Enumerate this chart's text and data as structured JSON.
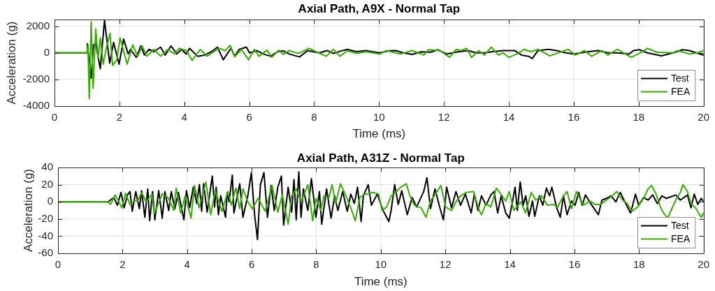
{
  "chart_data": [
    {
      "type": "line",
      "title": "Axial Path, A9X - Normal Tap",
      "xlabel": "Time (ms)",
      "ylabel": "Acceleration (g)",
      "xlim": [
        0,
        20
      ],
      "xticks": [
        0,
        2,
        4,
        6,
        8,
        10,
        12,
        14,
        16,
        18,
        20
      ],
      "ylim": [
        -4000,
        2500
      ],
      "yticks": [
        -4000,
        -2000,
        0,
        2000
      ],
      "grid": true,
      "legend": "bottom right",
      "series": [
        {
          "name": "Test",
          "color": "#000000",
          "x": [
            0,
            1.0,
            1.01,
            1.13,
            1.2,
            1.27,
            1.41,
            1.54,
            1.7,
            1.82,
            1.99,
            2.13,
            2.27,
            2.34,
            2.52,
            2.66,
            2.77,
            2.91,
            3.06,
            3.27,
            3.41,
            3.59,
            3.77,
            3.91,
            4.06,
            4.16,
            4.41,
            4.63,
            4.84,
            5.02,
            5.2,
            5.44,
            5.55,
            5.69,
            5.91,
            6.01,
            6.23,
            6.45,
            6.66,
            6.87,
            7.05,
            7.23,
            7.55,
            7.8,
            8.16,
            8.4,
            8.6,
            8.8,
            9.02,
            9.3,
            9.59,
            10.02,
            10.3,
            10.52,
            10.75,
            11.02,
            11.3,
            11.59,
            11.81,
            12.09,
            12.4,
            12.74,
            13.0,
            13.25,
            13.5,
            13.82,
            14.18,
            14.39,
            14.61,
            14.72,
            14.9,
            15.22,
            15.47,
            15.76,
            16.01,
            16.4,
            16.76,
            17.05,
            17.34,
            17.7,
            17.84,
            18.02,
            18.27,
            18.7,
            19.06,
            19.35,
            19.56,
            20.0
          ],
          "values": [
            0,
            0,
            690,
            -1900,
            600,
            700,
            -1200,
            2450,
            -780,
            780,
            -860,
            1030,
            -90,
            260,
            -340,
            520,
            -170,
            260,
            90,
            430,
            -170,
            520,
            -90,
            260,
            -90,
            340,
            -260,
            -170,
            90,
            430,
            -520,
            350,
            -260,
            260,
            430,
            0,
            170,
            -100,
            -260,
            90,
            150,
            -90,
            -310,
            170,
            0,
            170,
            -50,
            120,
            260,
            90,
            170,
            0,
            150,
            170,
            0,
            -120,
            80,
            50,
            230,
            -90,
            60,
            170,
            0,
            0,
            90,
            170,
            170,
            -170,
            -260,
            -430,
            170,
            260,
            170,
            0,
            -90,
            80,
            170,
            0,
            0,
            -90,
            170,
            230,
            0,
            -230,
            0,
            230,
            170,
            -170
          ]
        },
        {
          "name": "FEA",
          "color": "#36ad00",
          "x": [
            0,
            1.0,
            1.03,
            1.07,
            1.13,
            1.19,
            1.27,
            1.34,
            1.41,
            1.5,
            1.6,
            1.71,
            1.79,
            1.92,
            2.02,
            2.24,
            2.41,
            2.56,
            2.7,
            2.84,
            3.06,
            3.27,
            3.49,
            3.7,
            3.84,
            4.06,
            4.24,
            4.49,
            4.7,
            4.91,
            5.1,
            5.25,
            5.41,
            5.55,
            5.76,
            5.98,
            6.16,
            6.3,
            6.55,
            6.69,
            6.91,
            7.05,
            7.23,
            7.52,
            7.84,
            8.09,
            8.37,
            8.59,
            8.8,
            9.02,
            9.3,
            9.59,
            10.02,
            10.23,
            10.66,
            11.02,
            11.38,
            11.52,
            11.88,
            12.17,
            12.38,
            12.52,
            12.7,
            12.85,
            13.07,
            13.25,
            13.46,
            13.68,
            13.82,
            14.0,
            14.25,
            14.47,
            14.68,
            14.9,
            15.26,
            15.83,
            16.05,
            16.33,
            16.55,
            16.87,
            17.05,
            17.34,
            17.77,
            18.06,
            18.27,
            18.56,
            19.06,
            19.2,
            19.56,
            19.81,
            20.0
          ],
          "values": [
            0,
            0,
            600,
            -3450,
            2330,
            -2670,
            1810,
            -430,
            1120,
            -860,
            400,
            1470,
            -950,
            -520,
            1120,
            -860,
            600,
            -260,
            520,
            -260,
            260,
            -260,
            260,
            -90,
            340,
            170,
            -570,
            260,
            -260,
            90,
            340,
            150,
            560,
            -300,
            260,
            -520,
            260,
            -260,
            200,
            -340,
            200,
            -120,
            170,
            -50,
            340,
            50,
            -260,
            260,
            -260,
            170,
            -50,
            90,
            -90,
            170,
            -90,
            170,
            -170,
            230,
            170,
            -340,
            260,
            170,
            340,
            -340,
            170,
            -170,
            430,
            -170,
            0,
            -340,
            -90,
            260,
            90,
            260,
            -230,
            260,
            -170,
            170,
            -260,
            170,
            -170,
            260,
            -340,
            0,
            340,
            50,
            0,
            170,
            -90,
            0,
            170
          ]
        }
      ]
    },
    {
      "type": "line",
      "title": "Axial Path, A31Z - Normal Tap",
      "xlabel": "Time (ms)",
      "ylabel": "Acceleration (g)",
      "xlim": [
        0,
        20
      ],
      "xticks": [
        0,
        2,
        4,
        6,
        8,
        10,
        12,
        14,
        16,
        18,
        20
      ],
      "ylim": [
        -60,
        40
      ],
      "yticks": [
        -60,
        -40,
        -20,
        0,
        20,
        40
      ],
      "grid": true,
      "legend": "bottom right",
      "series": [
        {
          "name": "Test",
          "color": "#000000",
          "x": [
            0,
            1.55,
            1.73,
            1.84,
            1.95,
            2.05,
            2.15,
            2.23,
            2.3,
            2.41,
            2.52,
            2.59,
            2.69,
            2.78,
            2.84,
            2.93,
            3.0,
            3.12,
            3.23,
            3.31,
            3.43,
            3.51,
            3.62,
            3.73,
            3.9,
            3.98,
            4.08,
            4.19,
            4.3,
            4.38,
            4.45,
            4.51,
            4.62,
            4.78,
            4.85,
            4.9,
            4.97,
            5.04,
            5.19,
            5.24,
            5.3,
            5.4,
            5.45,
            5.63,
            5.73,
            5.88,
            5.99,
            6.09,
            6.18,
            6.27,
            6.38,
            6.49,
            6.6,
            6.7,
            6.81,
            6.92,
            6.99,
            7.13,
            7.24,
            7.31,
            7.38,
            7.46,
            7.53,
            7.6,
            7.74,
            7.85,
            7.99,
            8.1,
            8.17,
            8.32,
            8.46,
            8.57,
            8.67,
            8.82,
            8.96,
            9.07,
            9.18,
            9.28,
            9.39,
            9.46,
            9.61,
            9.71,
            9.89,
            10.07,
            10.25,
            10.32,
            10.43,
            10.54,
            10.65,
            10.82,
            10.97,
            11.11,
            11.33,
            11.43,
            11.54,
            11.68,
            11.83,
            11.94,
            12.04,
            12.19,
            12.33,
            12.47,
            12.62,
            12.8,
            12.9,
            13.01,
            13.12,
            13.26,
            13.41,
            13.51,
            13.62,
            13.73,
            13.87,
            13.98,
            14.09,
            14.16,
            14.23,
            14.32,
            14.41,
            14.49,
            14.59,
            14.7,
            14.77,
            14.91,
            15.02,
            15.13,
            15.23,
            15.3,
            15.45,
            15.56,
            15.66,
            15.77,
            15.91,
            16.02,
            16.13,
            16.24,
            16.34,
            16.52,
            16.74,
            16.85,
            16.99,
            17.13,
            17.28,
            17.42,
            17.56,
            17.74,
            17.89,
            17.99,
            18.14,
            18.28,
            18.42,
            18.57,
            18.71,
            18.85,
            19.14,
            19.28,
            19.5,
            19.61,
            19.71,
            19.82,
            19.93,
            20.0
          ],
          "values": [
            0,
            0,
            5,
            -4,
            11,
            -7,
            8,
            12,
            -11,
            12,
            -8,
            13,
            -18,
            15,
            -22,
            12,
            -21,
            13,
            -19,
            12,
            -10,
            12,
            -8,
            11,
            -21,
            13,
            -7,
            17,
            -2,
            20,
            -11,
            21,
            -12,
            30,
            -6,
            17,
            -15,
            7,
            -18,
            11,
            0,
            31,
            -13,
            21,
            -18,
            7,
            34,
            -15,
            -44,
            20,
            34,
            -18,
            19,
            -10,
            17,
            30,
            -27,
            17,
            -12,
            26,
            -21,
            35,
            -18,
            15,
            -10,
            27,
            -18,
            12,
            -26,
            15,
            -19,
            7,
            -10,
            12,
            -11,
            9,
            -2,
            17,
            -23,
            7,
            20,
            -4,
            9,
            -10,
            -23,
            -10,
            20,
            -3,
            13,
            -15,
            5,
            -6,
            12,
            28,
            -8,
            15,
            -7,
            -21,
            17,
            -7,
            12,
            -4,
            9,
            -13,
            9,
            -10,
            7,
            -4,
            8,
            12,
            -13,
            7,
            -13,
            -19,
            2,
            17,
            -10,
            23,
            -4,
            7,
            -17,
            1,
            -17,
            7,
            -4,
            16,
            7,
            17,
            -7,
            -18,
            7,
            -15,
            1,
            -4,
            11,
            -4,
            8,
            -3,
            -15,
            2,
            4,
            7,
            0,
            11,
            0,
            -13,
            9,
            -4,
            5,
            2,
            8,
            -2,
            7,
            4,
            8,
            2,
            8,
            -7,
            9,
            -3,
            4,
            0
          ]
        },
        {
          "name": "FEA",
          "color": "#36ad00",
          "x": [
            0,
            1.55,
            1.63,
            1.77,
            1.98,
            2.09,
            2.23,
            2.37,
            2.48,
            2.59,
            2.73,
            2.91,
            2.98,
            3.23,
            3.41,
            3.59,
            3.66,
            3.8,
            3.94,
            4.12,
            4.23,
            4.37,
            4.58,
            4.73,
            4.87,
            5.08,
            5.26,
            5.37,
            5.51,
            5.63,
            5.73,
            5.88,
            6.02,
            6.2,
            6.42,
            6.63,
            6.81,
            6.95,
            7.13,
            7.24,
            7.38,
            7.53,
            7.74,
            7.89,
            7.99,
            8.14,
            8.24,
            8.39,
            8.49,
            8.6,
            8.75,
            8.92,
            9.07,
            9.21,
            9.35,
            9.46,
            9.75,
            9.93,
            10.04,
            10.18,
            10.32,
            10.47,
            10.61,
            10.79,
            10.9,
            11.04,
            11.25,
            11.4,
            11.54,
            11.68,
            11.86,
            12.01,
            12.19,
            12.33,
            12.47,
            12.65,
            12.87,
            13.05,
            13.12,
            13.26,
            13.41,
            13.58,
            13.76,
            13.87,
            13.98,
            14.12,
            14.34,
            14.48,
            14.66,
            14.8,
            14.98,
            15.16,
            15.34,
            15.48,
            15.66,
            15.77,
            15.91,
            16.06,
            16.27,
            16.49,
            16.63,
            16.81,
            16.99,
            17.17,
            17.31,
            17.49,
            17.63,
            17.78,
            17.96,
            18.14,
            18.28,
            18.39,
            18.53,
            18.67,
            18.78,
            18.89,
            18.99,
            19.14,
            19.28,
            19.36,
            19.5,
            19.61,
            19.75,
            19.86,
            19.93,
            20.0
          ],
          "values": [
            0,
            0,
            -3,
            8,
            -7,
            10,
            -3,
            1,
            2,
            11,
            0,
            9,
            -14,
            9,
            5,
            -10,
            16,
            -13,
            7,
            -19,
            19,
            -7,
            23,
            -15,
            13,
            -11,
            12,
            -4,
            16,
            -8,
            15,
            0,
            -8,
            4,
            -11,
            19,
            -12,
            8,
            -26,
            7,
            15,
            0,
            20,
            -22,
            4,
            -10,
            7,
            4,
            20,
            -2,
            21,
            7,
            -7,
            -22,
            5,
            8,
            11,
            9,
            -10,
            -6,
            7,
            11,
            17,
            21,
            7,
            -4,
            -7,
            -18,
            1,
            8,
            19,
            -6,
            -10,
            0,
            7,
            11,
            12,
            -10,
            -15,
            -2,
            -6,
            16,
            7,
            1,
            12,
            -10,
            0,
            -13,
            11,
            2,
            7,
            -4,
            -3,
            -6,
            7,
            12,
            -8,
            12,
            -4,
            1,
            -3,
            -3,
            2,
            7,
            12,
            2,
            -2,
            -11,
            -6,
            4,
            15,
            19,
            9,
            -7,
            -14,
            -19,
            -10,
            2,
            11,
            20,
            12,
            -2,
            -7,
            -14,
            -18,
            -13
          ]
        }
      ]
    }
  ]
}
